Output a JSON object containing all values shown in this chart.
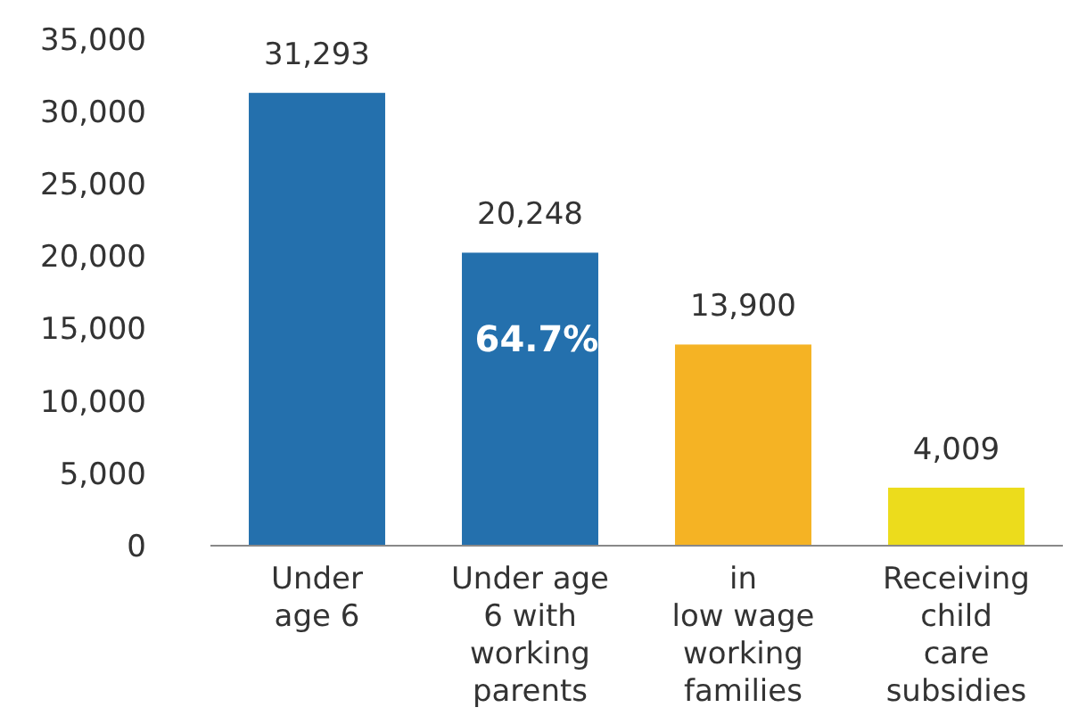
{
  "chart_data": {
    "type": "bar",
    "categories": [
      "Under\nage 6",
      "Under age\n6 with\nworking\nparents",
      "in\nlow wage\nworking\nfamilies",
      "Receiving\nchild\ncare\nsubsidies"
    ],
    "values": [
      31293,
      20248,
      13900,
      4009
    ],
    "colors": [
      "#2470ad",
      "#2470ad",
      "#f5b324",
      "#ecdc1c"
    ],
    "value_labels": [
      "31,293",
      "20,248",
      "13,900",
      "4,009"
    ],
    "ylim": [
      0,
      35000
    ],
    "yticks": [
      {
        "value": 0,
        "label": "0"
      },
      {
        "value": 5000,
        "label": "5,000"
      },
      {
        "value": 10000,
        "label": "10,000"
      },
      {
        "value": 15000,
        "label": "15,000"
      },
      {
        "value": 20000,
        "label": "20,000"
      },
      {
        "value": 25000,
        "label": "25,000"
      },
      {
        "value": 30000,
        "label": "30,000"
      },
      {
        "value": 35000,
        "label": "35,000"
      }
    ],
    "annotations": [
      "64.7%"
    ],
    "grid": false
  }
}
